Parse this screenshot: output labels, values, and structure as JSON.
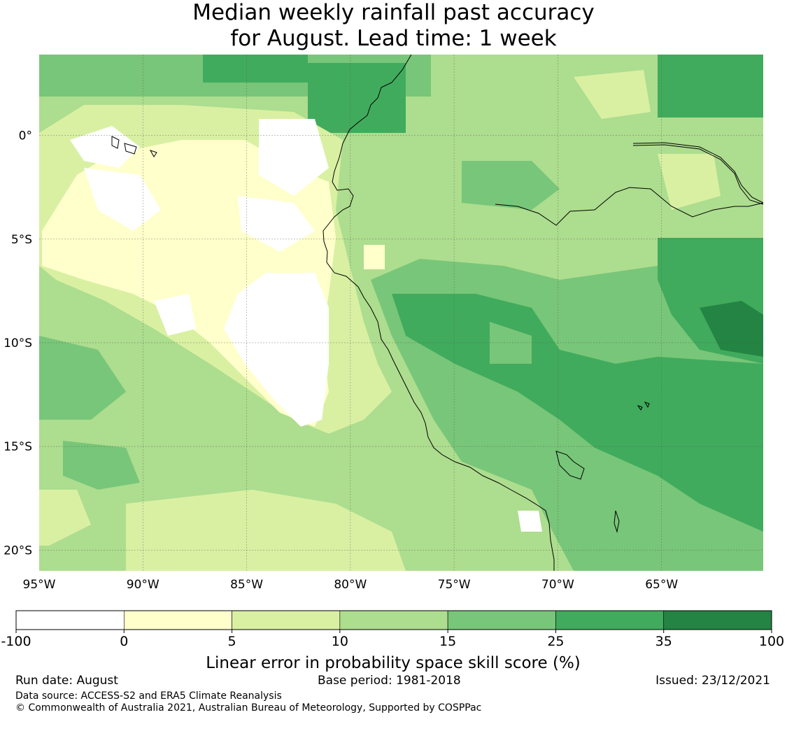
{
  "title": {
    "line1": "Median weekly rainfall past accuracy",
    "line2": "for August. Lead time: 1 week"
  },
  "map": {
    "lon_range": [
      -95,
      -60.1
    ],
    "lat_range": [
      -21,
      3.9
    ],
    "lon_ticks": [
      {
        "value": -95,
        "label": "95°W"
      },
      {
        "value": -90,
        "label": "90°W"
      },
      {
        "value": -85,
        "label": "85°W"
      },
      {
        "value": -80,
        "label": "80°W"
      },
      {
        "value": -75,
        "label": "75°W"
      },
      {
        "value": -70,
        "label": "70°W"
      },
      {
        "value": -65,
        "label": "65°W"
      }
    ],
    "lat_ticks": [
      {
        "value": 0,
        "label": "0°"
      },
      {
        "value": -5,
        "label": "5°S"
      },
      {
        "value": -10,
        "label": "10°S"
      },
      {
        "value": -15,
        "label": "15°S"
      },
      {
        "value": -20,
        "label": "20°S"
      }
    ],
    "grid": true
  },
  "colorbar": {
    "boundaries": [
      -100,
      0,
      5,
      10,
      15,
      25,
      35,
      100
    ],
    "tick_labels": [
      "-100",
      "0",
      "5",
      "10",
      "15",
      "25",
      "35",
      "100"
    ],
    "colors": [
      "#ffffff",
      "#ffffcc",
      "#d9f0a3",
      "#addd8e",
      "#78c679",
      "#41ab5d",
      "#238443"
    ],
    "label": "Linear error in probability space skill score (%)"
  },
  "footer": {
    "run_date": "Run date: August",
    "base_period": "Base period: 1981-2018",
    "issued": "Issued: 23/12/2021",
    "data_source": "Data source: ACCESS-S2 and ERA5 Climate Reanalysis",
    "copyright": "© Commonwealth of Australia 2021, Australian Bureau of Meteorology, Supported by COSPPac"
  }
}
